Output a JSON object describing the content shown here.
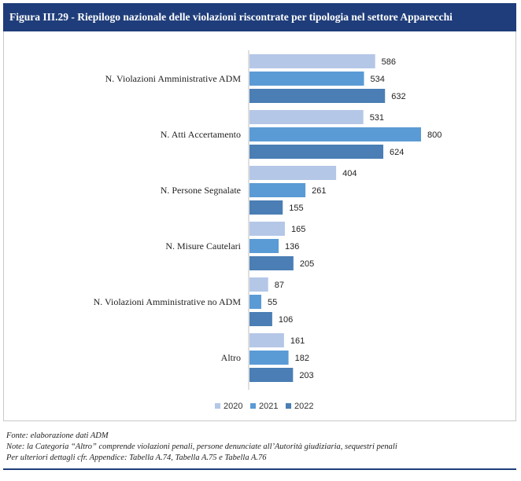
{
  "header": {
    "title": "Figura III.29 - Riepilogo nazionale delle violazioni riscontrate per tipologia nel settore Apparecchi"
  },
  "chart_data": {
    "type": "bar",
    "orientation": "horizontal",
    "categories": [
      "N. Violazioni Amministrative ADM",
      "N. Atti Accertamento",
      "N. Persone Segnalate",
      "N. Misure Cautelari",
      "N. Violazioni Amministrative no ADM",
      "Altro"
    ],
    "series": [
      {
        "name": "2020",
        "color": "#b4c7e7",
        "values": [
          586,
          531,
          404,
          165,
          87,
          161
        ]
      },
      {
        "name": "2021",
        "color": "#5b9bd5",
        "values": [
          534,
          800,
          261,
          136,
          55,
          182
        ]
      },
      {
        "name": "2022",
        "color": "#4a7eb5",
        "values": [
          632,
          624,
          155,
          205,
          106,
          203
        ]
      }
    ],
    "xlim": [
      0,
      900
    ],
    "grid": false,
    "legend": "bottom"
  },
  "notes": {
    "fonte": "Fonte: elaborazione dati ADM",
    "nota": "Note: la Categoria “Altro” comprende violazioni penali, persone denunciate all’Autorità giudiziaria, sequestri penali",
    "dettagli": "Per ulteriori dettagli cfr. Appendice: Tabella A.74, Tabella A.75 e Tabella A.76"
  }
}
